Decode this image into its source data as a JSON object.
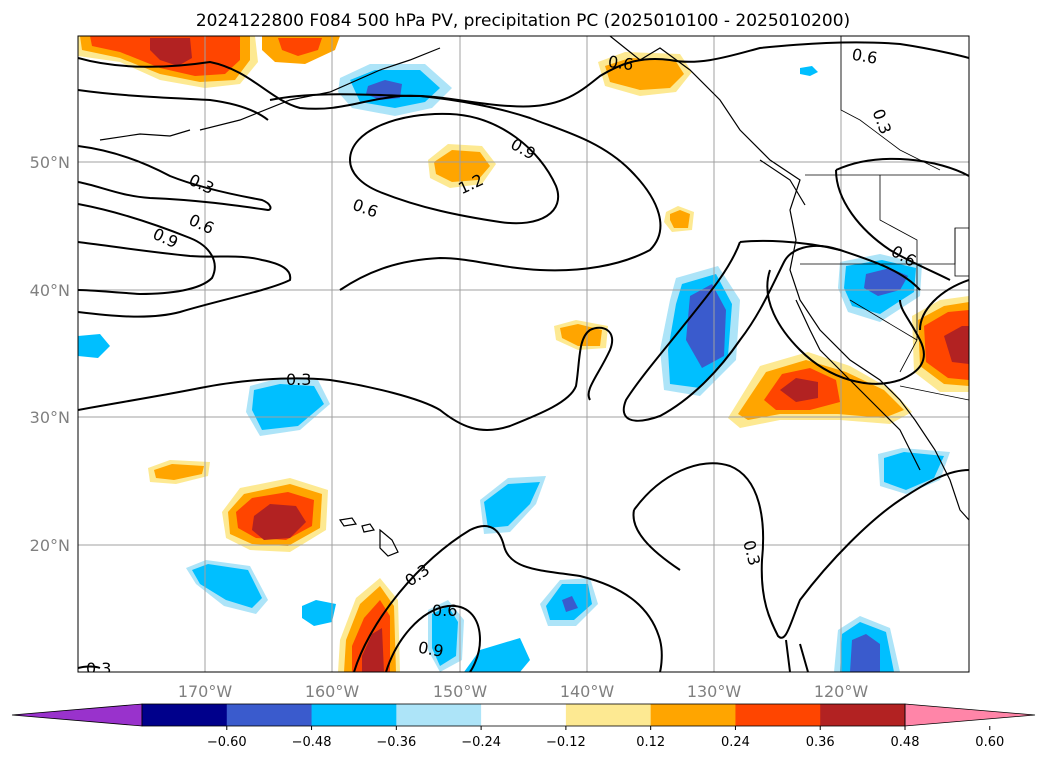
{
  "title": "2024122800 F084 500 hPa PV, precipitation PC (2025010100 - 2025010200)",
  "map": {
    "latitude_labels": [
      "50°N",
      "40°N",
      "30°N",
      "20°N"
    ],
    "longitude_labels": [
      "170°W",
      "160°W",
      "150°W",
      "140°W",
      "130°W",
      "120°W"
    ],
    "pv_contour_labels": [
      "0.6",
      "0.6",
      "0.3",
      "0.9",
      "1.2",
      "0.3",
      "0.6",
      "0.6",
      "0.9",
      "0.6",
      "0.3",
      "0.3",
      "0.6",
      "0.9",
      "0.3",
      "0.3"
    ]
  },
  "colorbar": {
    "ticks": [
      "−0.60",
      "−0.48",
      "−0.36",
      "−0.24",
      "−0.12",
      "0.12",
      "0.24",
      "0.36",
      "0.48",
      "0.60"
    ],
    "colors": [
      "#9932cc",
      "#00008b",
      "#3a5bcd",
      "#00bfff",
      "#ade4f8",
      "#ffffff",
      "#fde992",
      "#ffa500",
      "#ff4500",
      "#b22222",
      "#ff85a8"
    ]
  }
}
